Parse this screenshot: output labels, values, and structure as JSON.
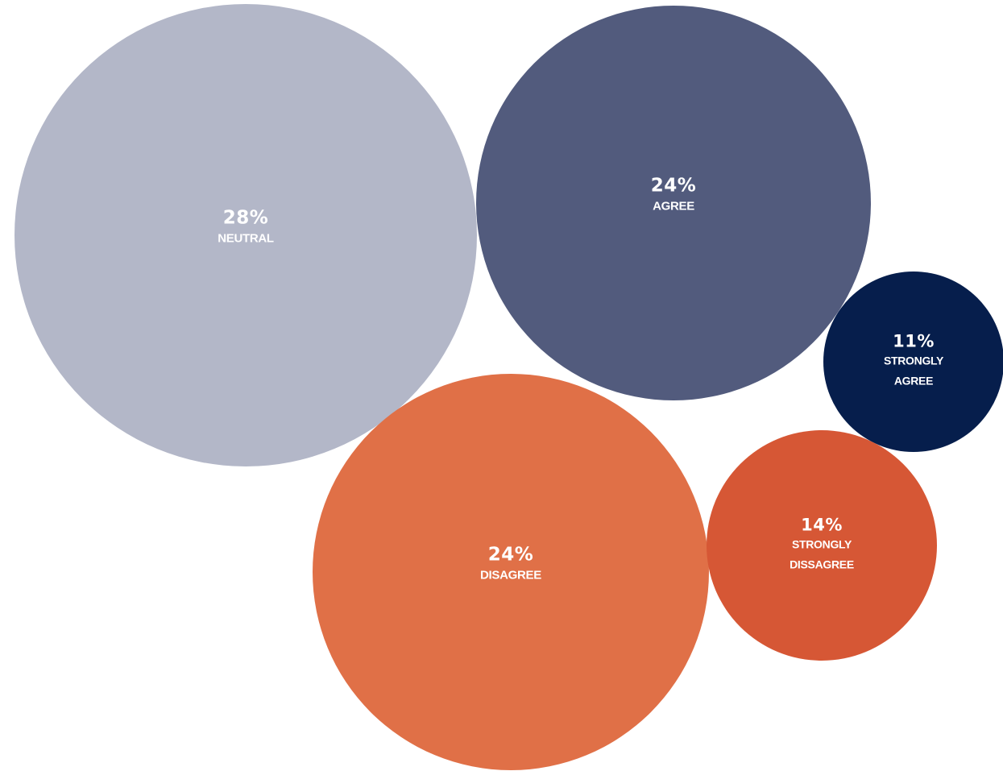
{
  "chart_data": {
    "type": "bubble",
    "title": "",
    "categories": [
      "Neutral",
      "Agree",
      "Strongly Agree",
      "Disagree",
      "Strongly Dissagree"
    ],
    "values": [
      28,
      24,
      11,
      24,
      14
    ],
    "unit": "%",
    "bubbles": [
      {
        "id": "neutral",
        "value": 28,
        "value_label": "28%",
        "label_lines": [
          "NEUTRAL"
        ],
        "color": "#b3b7c8"
      },
      {
        "id": "agree",
        "value": 24,
        "value_label": "24%",
        "label_lines": [
          "AGREE"
        ],
        "color": "#525b7d"
      },
      {
        "id": "strongly-agree",
        "value": 11,
        "value_label": "11%",
        "label_lines": [
          "STRONGLY",
          "AGREE"
        ],
        "color": "#061e4c"
      },
      {
        "id": "disagree",
        "value": 24,
        "value_label": "24%",
        "label_lines": [
          "DISAGREE"
        ],
        "color": "#e07047"
      },
      {
        "id": "strongly-dissagree",
        "value": 14,
        "value_label": "14%",
        "label_lines": [
          "STRONGLY",
          "DISSAGREE"
        ],
        "color": "#d65735"
      }
    ],
    "legend": "none",
    "grid": false
  }
}
